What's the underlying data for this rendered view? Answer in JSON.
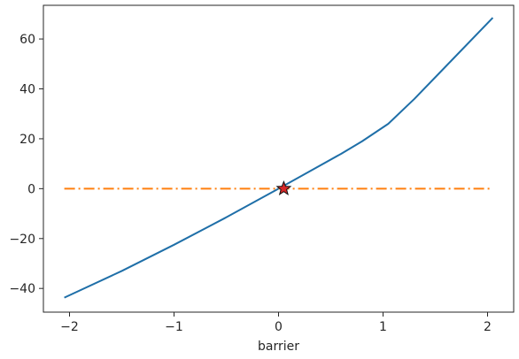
{
  "chart_data": {
    "type": "line",
    "title": "",
    "xlabel": "barrier",
    "ylabel": "",
    "xlim": [
      -2.25,
      2.25
    ],
    "ylim": [
      -49.5,
      73.5
    ],
    "xticks": [
      {
        "value": -2,
        "label": "−2"
      },
      {
        "value": -1,
        "label": "−1"
      },
      {
        "value": 0,
        "label": "0"
      },
      {
        "value": 1,
        "label": "1"
      },
      {
        "value": 2,
        "label": "2"
      }
    ],
    "yticks": [
      {
        "value": -40,
        "label": "−40"
      },
      {
        "value": -20,
        "label": "−20"
      },
      {
        "value": 0,
        "label": "0"
      },
      {
        "value": 20,
        "label": "20"
      },
      {
        "value": 40,
        "label": "40"
      },
      {
        "value": 60,
        "label": "60"
      }
    ],
    "grid": false,
    "series": [
      {
        "style": "solid",
        "color": "#1f6fa8",
        "x": [
          -2.05,
          -1.5,
          -1.0,
          -0.5,
          0.0,
          0.3,
          0.6,
          0.8,
          1.05,
          1.3,
          1.6,
          2.05
        ],
        "y": [
          -43.7,
          -33.0,
          -22.5,
          -11.5,
          0.0,
          7.0,
          14.0,
          19.0,
          26.0,
          36.0,
          49.0,
          68.5
        ]
      },
      {
        "style": "dash-dot",
        "color": "#ff7f0e",
        "x": [
          -2.05,
          2.05
        ],
        "y": [
          0.0,
          0.0
        ]
      }
    ],
    "markers": [
      {
        "shape": "star",
        "x": 0.05,
        "y": 0.0,
        "fill": "#d62728",
        "stroke": "#111111"
      }
    ]
  }
}
